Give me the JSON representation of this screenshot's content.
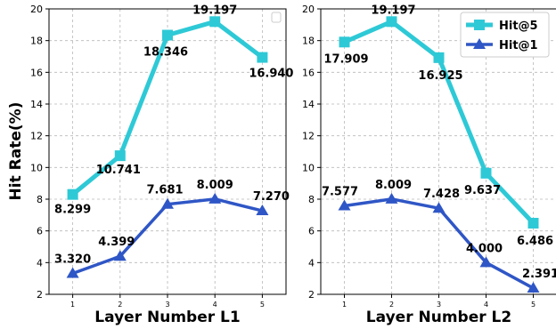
{
  "colors": {
    "hit5": "#2ec9d6",
    "hit1": "#2f56c6",
    "grid": "#b8b8b8"
  },
  "chart_data": [
    {
      "type": "line",
      "xlabel": "Layer Number L1",
      "ylabel": "Hit Rate(%)",
      "x": [
        1,
        2,
        3,
        4,
        5
      ],
      "ylim": [
        2,
        20
      ],
      "yticks": [
        2,
        4,
        6,
        8,
        10,
        12,
        14,
        16,
        18,
        20
      ],
      "grid": true,
      "legend": "top-right (empty box)",
      "series": [
        {
          "name": "Hit@5",
          "marker": "square",
          "values": [
            8.299,
            10.741,
            18.346,
            19.197,
            16.94
          ],
          "labels": [
            "8.299",
            "10.741",
            "18.346",
            "19.197",
            "16.940"
          ]
        },
        {
          "name": "Hit@1",
          "marker": "triangle",
          "values": [
            3.32,
            4.399,
            7.681,
            8.009,
            7.27
          ],
          "labels": [
            "3.320",
            "4.399",
            "7.681",
            "8.009",
            "7.270"
          ]
        }
      ]
    },
    {
      "type": "line",
      "xlabel": "Layer Number L2",
      "ylabel": "",
      "x": [
        1,
        2,
        3,
        4,
        5
      ],
      "ylim": [
        2,
        20
      ],
      "yticks": [
        2,
        4,
        6,
        8,
        10,
        12,
        14,
        16,
        18,
        20
      ],
      "grid": true,
      "legend": "top-right",
      "series": [
        {
          "name": "Hit@5",
          "marker": "square",
          "values": [
            17.909,
            19.197,
            16.925,
            9.637,
            6.486
          ],
          "labels": [
            "17.909",
            "19.197",
            "16.925",
            "9.637",
            "6.486"
          ]
        },
        {
          "name": "Hit@1",
          "marker": "triangle",
          "values": [
            7.577,
            8.009,
            7.428,
            4.0,
            2.391
          ],
          "labels": [
            "7.577",
            "8.009",
            "7.428",
            "4.000",
            "2.391"
          ]
        }
      ]
    }
  ]
}
